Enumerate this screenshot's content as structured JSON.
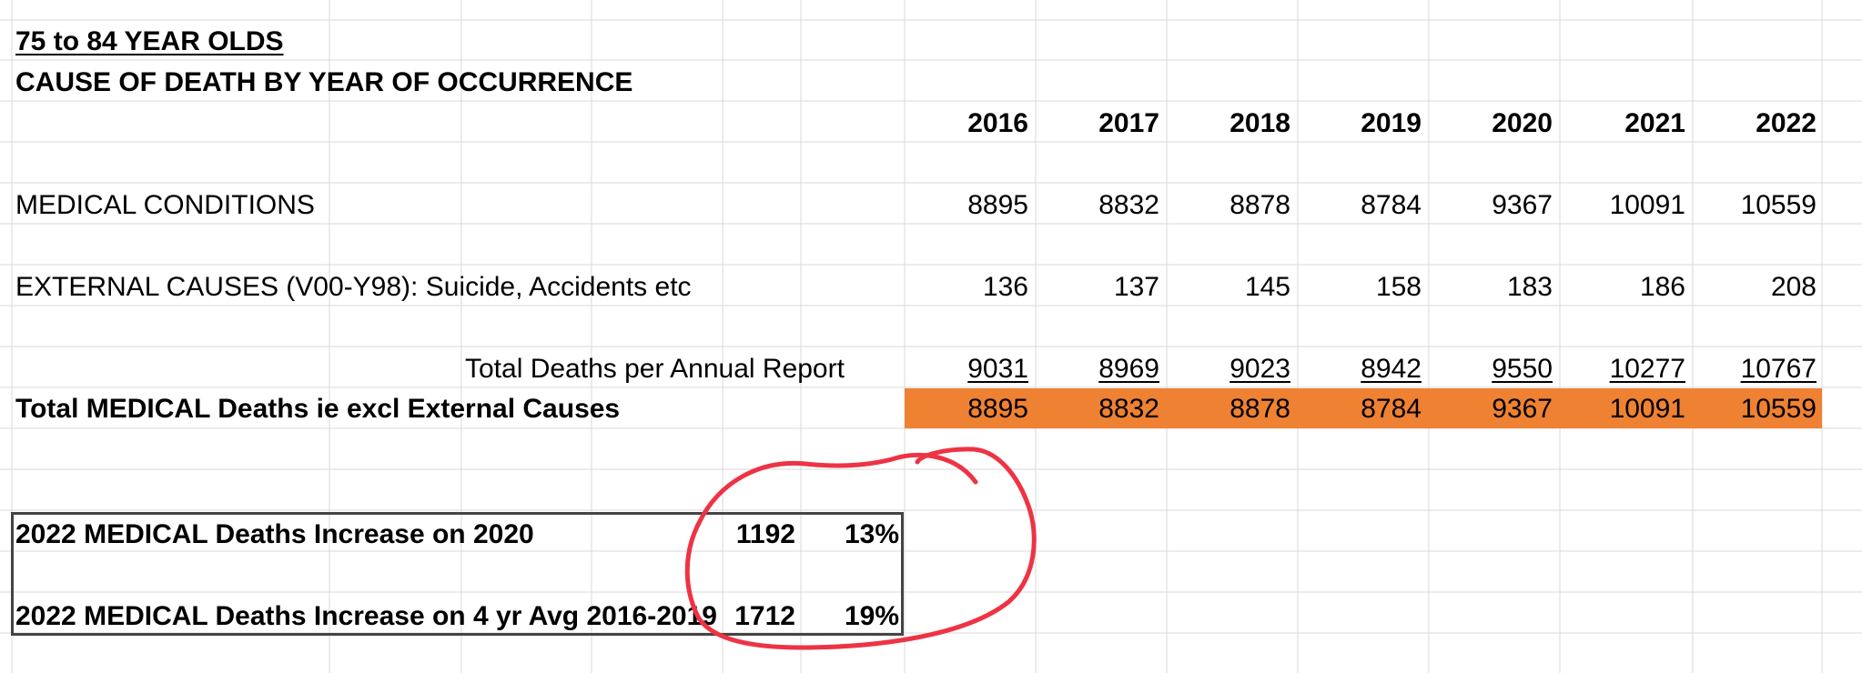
{
  "sheet": {
    "title": "75 to 84 YEAR OLDS",
    "subtitle": "CAUSE OF DEATH BY YEAR OF OCCURRENCE",
    "years": [
      "2016",
      "2017",
      "2018",
      "2019",
      "2020",
      "2021",
      "2022"
    ],
    "rows": {
      "medical": {
        "label": "MEDICAL CONDITIONS",
        "values": [
          "8895",
          "8832",
          "8878",
          "8784",
          "9367",
          "10091",
          "10559"
        ]
      },
      "external": {
        "label": "EXTERNAL CAUSES (V00-Y98): Suicide, Accidents etc",
        "values": [
          "136",
          "137",
          "145",
          "158",
          "183",
          "186",
          "208"
        ]
      },
      "total": {
        "label": "Total Deaths per Annual Report",
        "values": [
          "9031",
          "8969",
          "9023",
          "8942",
          "9550",
          "10277",
          "10767"
        ]
      },
      "total_medical": {
        "label": "Total MEDICAL Deaths ie excl External Causes",
        "values": [
          "8895",
          "8832",
          "8878",
          "8784",
          "9367",
          "10091",
          "10559"
        ]
      }
    },
    "summary": [
      {
        "label": "2022 MEDICAL Deaths Increase on 2020",
        "value": "1192",
        "pct": "13%"
      },
      {
        "label": "2022 MEDICAL Deaths Increase on 4 yr Avg 2016-2019",
        "value": "1712",
        "pct": "19%"
      }
    ],
    "highlight_color": "#ef8133",
    "annotation_color": "#ee3344"
  }
}
